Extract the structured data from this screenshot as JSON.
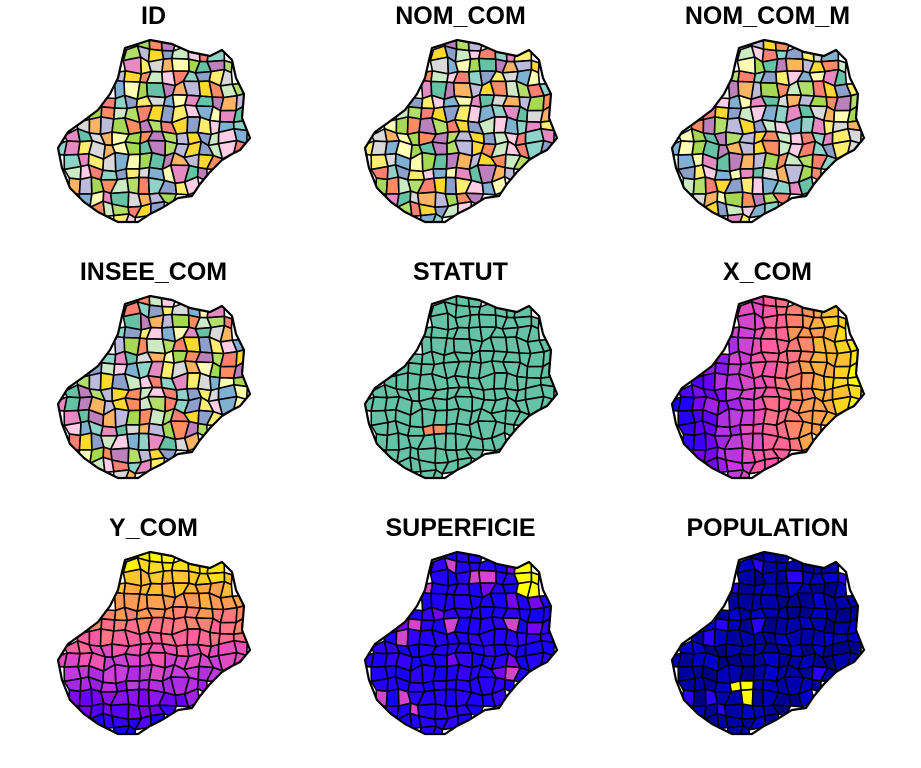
{
  "panels": [
    {
      "title": "ID",
      "scheme": "qualitative"
    },
    {
      "title": "NOM_COM",
      "scheme": "qualitative"
    },
    {
      "title": "NOM_COM_M",
      "scheme": "qualitative"
    },
    {
      "title": "INSEE_COM",
      "scheme": "qualitative"
    },
    {
      "title": "STATUT",
      "scheme": "statut"
    },
    {
      "title": "X_COM",
      "scheme": "gradient-x"
    },
    {
      "title": "Y_COM",
      "scheme": "gradient-y"
    },
    {
      "title": "SUPERFICIE",
      "scheme": "gradient-superficie"
    },
    {
      "title": "POPULATION",
      "scheme": "gradient-population"
    }
  ],
  "colors": {
    "qualitative": [
      "#8dd3c7",
      "#ffffb3",
      "#bebada",
      "#fb8072",
      "#80b1d3",
      "#fdb462",
      "#b3de69",
      "#fccde5",
      "#d9d9d9",
      "#bc80bd",
      "#ccebc5",
      "#ffed6f",
      "#66c2a5",
      "#fc8d62",
      "#8da0cb",
      "#e78ac3",
      "#a6d854",
      "#ffd92f"
    ],
    "statut_main": "#66c2a5",
    "statut_other": [
      "#fc8d62",
      "#8da0cb"
    ],
    "gradient": [
      "#0000ff",
      "#6f00f5",
      "#c23ddc",
      "#ff5aa5",
      "#ff8c64",
      "#ffbe32",
      "#ffff00"
    ],
    "outline": "#000000"
  }
}
